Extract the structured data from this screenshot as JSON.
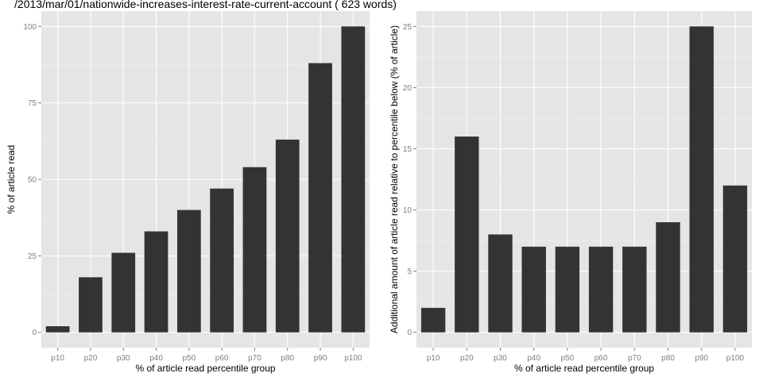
{
  "chart_data": [
    {
      "type": "bar",
      "title": "/2013/mar/01/nationwide-increases-interest-rate-current-account ( 623 words)",
      "xlabel": "% of article read percentile group",
      "ylabel": "% of article read",
      "categories": [
        "p10",
        "p20",
        "p30",
        "p40",
        "p50",
        "p60",
        "p70",
        "p80",
        "p90",
        "p100"
      ],
      "values": [
        2,
        18,
        26,
        33,
        40,
        47,
        54,
        63,
        88,
        100
      ],
      "ylim": [
        -5,
        105
      ],
      "yticks": [
        0,
        25,
        50,
        75,
        100
      ],
      "grid": true,
      "bar_color": "#333333",
      "panel_color": "#e5e5e5"
    },
    {
      "type": "bar",
      "title": "",
      "xlabel": "% of article read percentile group",
      "ylabel": "Additional amount of article read relative to percentile below (% of article)",
      "categories": [
        "p10",
        "p20",
        "p30",
        "p40",
        "p50",
        "p60",
        "p70",
        "p80",
        "p90",
        "p100"
      ],
      "values": [
        2,
        16,
        8,
        7,
        7,
        7,
        7,
        9,
        25,
        12
      ],
      "ylim": [
        -1.25,
        26.25
      ],
      "yticks": [
        0,
        5,
        10,
        15,
        20,
        25
      ],
      "grid": true,
      "bar_color": "#333333",
      "panel_color": "#e5e5e5"
    }
  ]
}
